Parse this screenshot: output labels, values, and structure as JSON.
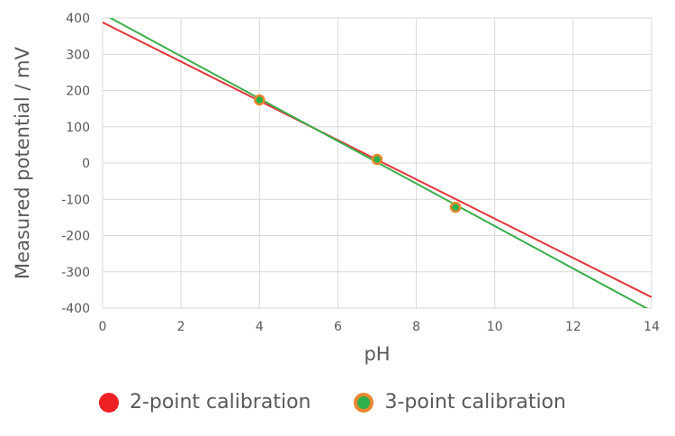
{
  "chart_data": {
    "type": "line",
    "title": "",
    "xlabel": "pH",
    "ylabel": "Measured potential / mV",
    "xlim": [
      0,
      14
    ],
    "ylim": [
      -400,
      400
    ],
    "xticks": [
      0,
      2,
      4,
      6,
      8,
      10,
      12,
      14
    ],
    "yticks": [
      400,
      300,
      200,
      100,
      0,
      -100,
      -200,
      -300,
      -400
    ],
    "grid": true,
    "legend_position": "bottom",
    "series": [
      {
        "name": "2-point calibration",
        "kind": "line",
        "color": "#E2363B",
        "line": {
          "x": [
            0,
            14
          ],
          "y": [
            388,
            -370
          ]
        }
      },
      {
        "name": "3-point calibration",
        "kind": "line+markers",
        "color": "#3AAE4A",
        "marker_fill": "#2BB04A",
        "marker_edge": "#E8872E",
        "line": {
          "x": [
            0,
            14
          ],
          "y": [
            412,
            -408
          ]
        },
        "points": {
          "x": [
            4,
            7,
            9
          ],
          "y": [
            174,
            10,
            -122
          ]
        }
      }
    ]
  },
  "legend": [
    {
      "label": "2-point calibration",
      "fill": "#ED2024",
      "edge": "#ED2024"
    },
    {
      "label": "3-point calibration",
      "fill": "#2BB04A",
      "edge": "#E8872E"
    }
  ]
}
